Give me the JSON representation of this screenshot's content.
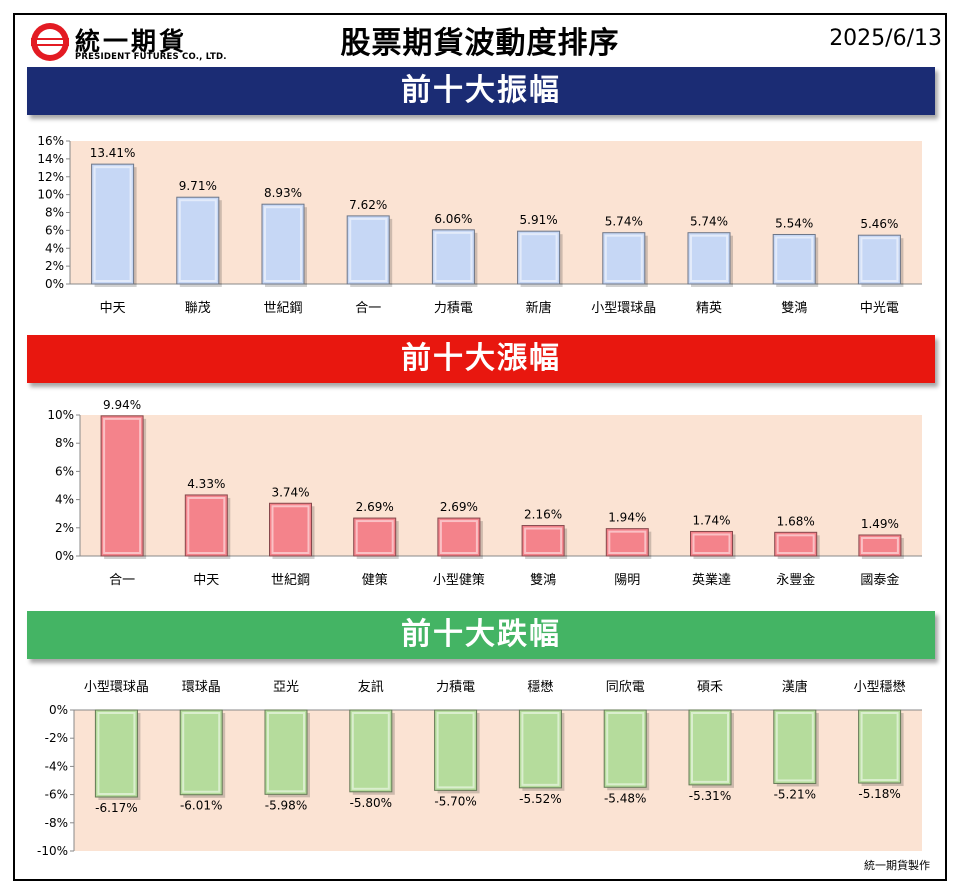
{
  "header": {
    "logo_text": "統一期貨",
    "logo_sub": "PRESIDENT FUTURES CO., LTD.",
    "title": "股票期貨波動度排序",
    "date": "2025/6/13"
  },
  "footer": {
    "credit": "統一期貨製作"
  },
  "colors": {
    "plot_bg": "#fbe3d3",
    "banner_1": "#1b2c74",
    "banner_2": "#e8170f",
    "banner_3": "#44b464",
    "bar_1": "#c6d7f5",
    "bar_2": "#f4838b",
    "bar_3": "#b5dc9c"
  },
  "chart_data": [
    {
      "type": "bar",
      "title": "前十大振幅",
      "categories": [
        "中天",
        "聯茂",
        "世紀鋼",
        "合一",
        "力積電",
        "新唐",
        "小型環球晶",
        "精英",
        "雙鴻",
        "中光電"
      ],
      "values": [
        13.41,
        9.71,
        8.93,
        7.62,
        6.06,
        5.91,
        5.74,
        5.74,
        5.54,
        5.46
      ],
      "value_labels": [
        "13.41%",
        "9.71%",
        "8.93%",
        "7.62%",
        "6.06%",
        "5.91%",
        "5.74%",
        "5.74%",
        "5.54%",
        "5.46%"
      ],
      "yticks": [
        "0%",
        "2%",
        "4%",
        "6%",
        "8%",
        "10%",
        "12%",
        "14%",
        "16%"
      ],
      "ylim": [
        0,
        16
      ],
      "unit": "%",
      "category_axis": "bottom"
    },
    {
      "type": "bar",
      "title": "前十大漲幅",
      "categories": [
        "合一",
        "中天",
        "世紀鋼",
        "健策",
        "小型健策",
        "雙鴻",
        "陽明",
        "英業達",
        "永豐金",
        "國泰金"
      ],
      "values": [
        9.94,
        4.33,
        3.74,
        2.69,
        2.69,
        2.16,
        1.94,
        1.74,
        1.68,
        1.49
      ],
      "value_labels": [
        "9.94%",
        "4.33%",
        "3.74%",
        "2.69%",
        "2.69%",
        "2.16%",
        "1.94%",
        "1.74%",
        "1.68%",
        "1.49%"
      ],
      "yticks": [
        "0%",
        "2%",
        "4%",
        "6%",
        "8%",
        "10%"
      ],
      "ylim": [
        0,
        10
      ],
      "unit": "%",
      "category_axis": "bottom"
    },
    {
      "type": "bar",
      "title": "前十大跌幅",
      "categories": [
        "小型環球晶",
        "環球晶",
        "亞光",
        "友訊",
        "力積電",
        "穩懋",
        "同欣電",
        "碩禾",
        "漢唐",
        "小型穩懋"
      ],
      "values": [
        -6.17,
        -6.01,
        -5.98,
        -5.8,
        -5.7,
        -5.52,
        -5.48,
        -5.31,
        -5.21,
        -5.18
      ],
      "value_labels": [
        "-6.17%",
        "-6.01%",
        "-5.98%",
        "-5.80%",
        "-5.70%",
        "-5.52%",
        "-5.48%",
        "-5.31%",
        "-5.21%",
        "-5.18%"
      ],
      "yticks": [
        "0%",
        "-2%",
        "-4%",
        "-6%",
        "-8%",
        "-10%"
      ],
      "ylim": [
        -10,
        0
      ],
      "unit": "%",
      "category_axis": "top"
    }
  ]
}
